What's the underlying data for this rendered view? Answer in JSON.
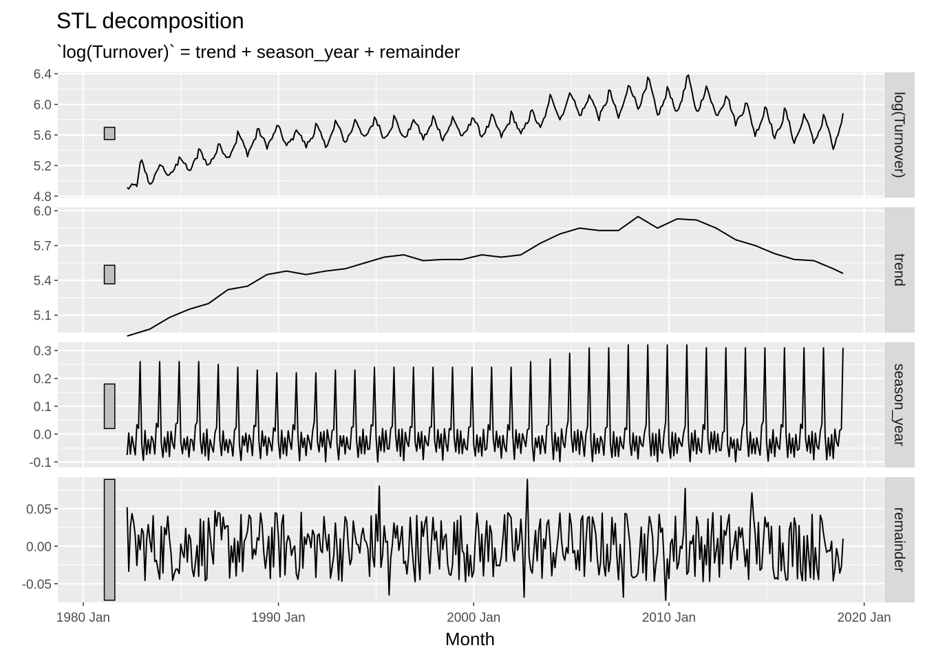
{
  "chart_data": {
    "type": "line",
    "title": "STL decomposition",
    "subtitle": "`log(Turnover)` = trend + season_year + remainder",
    "xlabel": "Month",
    "x_range": [
      "1982-04",
      "2018-12"
    ],
    "x_ticks": [
      "1980 Jan",
      "1990 Jan",
      "2000 Jan",
      "2010 Jan",
      "2020 Jan"
    ],
    "grid": true,
    "panels": [
      {
        "name": "log(Turnover)",
        "ylim": [
          4.78,
          6.42
        ],
        "y_ticks": [
          "6.4",
          "6.0",
          "5.6",
          "5.2",
          "4.8"
        ],
        "scale_bar": [
          5.54,
          5.7
        ],
        "points": [
          [
            "1982-04",
            4.9
          ],
          [
            "1982-10",
            4.95
          ],
          [
            "1983-01",
            5.25
          ],
          [
            "1983-06",
            4.95
          ],
          [
            "1984-01",
            5.2
          ],
          [
            "1984-06",
            5.05
          ],
          [
            "1985-01",
            5.3
          ],
          [
            "1985-06",
            5.12
          ],
          [
            "1986-01",
            5.38
          ],
          [
            "1986-06",
            5.2
          ],
          [
            "1987-01",
            5.45
          ],
          [
            "1987-06",
            5.3
          ],
          [
            "1988-01",
            5.6
          ],
          [
            "1988-06",
            5.35
          ],
          [
            "1989-01",
            5.65
          ],
          [
            "1989-06",
            5.45
          ],
          [
            "1990-01",
            5.7
          ],
          [
            "1990-06",
            5.45
          ],
          [
            "1991-01",
            5.65
          ],
          [
            "1991-06",
            5.45
          ],
          [
            "1992-01",
            5.7
          ],
          [
            "1992-06",
            5.45
          ],
          [
            "1993-01",
            5.75
          ],
          [
            "1993-06",
            5.5
          ],
          [
            "1994-01",
            5.78
          ],
          [
            "1994-06",
            5.55
          ],
          [
            "1995-01",
            5.8
          ],
          [
            "1995-06",
            5.55
          ],
          [
            "1996-01",
            5.8
          ],
          [
            "1996-06",
            5.55
          ],
          [
            "1997-01",
            5.78
          ],
          [
            "1997-06",
            5.55
          ],
          [
            "1998-01",
            5.8
          ],
          [
            "1998-06",
            5.55
          ],
          [
            "1999-01",
            5.8
          ],
          [
            "1999-06",
            5.56
          ],
          [
            "2000-01",
            5.82
          ],
          [
            "2000-06",
            5.58
          ],
          [
            "2001-01",
            5.82
          ],
          [
            "2001-06",
            5.58
          ],
          [
            "2002-01",
            5.85
          ],
          [
            "2002-06",
            5.6
          ],
          [
            "2003-01",
            5.9
          ],
          [
            "2003-06",
            5.68
          ],
          [
            "2004-01",
            6.1
          ],
          [
            "2004-06",
            5.8
          ],
          [
            "2005-01",
            6.15
          ],
          [
            "2005-06",
            5.85
          ],
          [
            "2006-01",
            6.1
          ],
          [
            "2006-06",
            5.82
          ],
          [
            "2007-01",
            6.15
          ],
          [
            "2007-06",
            5.82
          ],
          [
            "2008-01",
            6.25
          ],
          [
            "2008-06",
            5.95
          ],
          [
            "2009-01",
            6.3
          ],
          [
            "2009-06",
            5.85
          ],
          [
            "2010-01",
            6.18
          ],
          [
            "2010-06",
            5.88
          ],
          [
            "2011-01",
            6.35
          ],
          [
            "2011-06",
            5.9
          ],
          [
            "2012-01",
            6.2
          ],
          [
            "2012-06",
            5.85
          ],
          [
            "2013-01",
            6.1
          ],
          [
            "2013-06",
            5.75
          ],
          [
            "2014-01",
            6.0
          ],
          [
            "2014-06",
            5.6
          ],
          [
            "2015-01",
            5.95
          ],
          [
            "2015-06",
            5.55
          ],
          [
            "2016-01",
            5.9
          ],
          [
            "2016-06",
            5.5
          ],
          [
            "2017-01",
            5.85
          ],
          [
            "2017-06",
            5.5
          ],
          [
            "2018-01",
            5.82
          ],
          [
            "2018-06",
            5.42
          ],
          [
            "2018-12",
            5.78
          ]
        ]
      },
      {
        "name": "trend",
        "ylim": [
          4.95,
          6.03
        ],
        "y_ticks": [
          "6.0",
          "5.7",
          "5.4",
          "5.1"
        ],
        "scale_bar": [
          5.37,
          5.53
        ],
        "points": [
          [
            "1982-04",
            4.92
          ],
          [
            "1983-06",
            4.98
          ],
          [
            "1984-06",
            5.08
          ],
          [
            "1985-06",
            5.15
          ],
          [
            "1986-06",
            5.2
          ],
          [
            "1987-06",
            5.32
          ],
          [
            "1988-06",
            5.35
          ],
          [
            "1989-06",
            5.45
          ],
          [
            "1990-06",
            5.48
          ],
          [
            "1991-06",
            5.45
          ],
          [
            "1992-06",
            5.48
          ],
          [
            "1993-06",
            5.5
          ],
          [
            "1994-06",
            5.55
          ],
          [
            "1995-06",
            5.6
          ],
          [
            "1996-06",
            5.62
          ],
          [
            "1997-06",
            5.57
          ],
          [
            "1998-06",
            5.58
          ],
          [
            "1999-06",
            5.58
          ],
          [
            "2000-06",
            5.62
          ],
          [
            "2001-06",
            5.6
          ],
          [
            "2002-06",
            5.62
          ],
          [
            "2003-06",
            5.72
          ],
          [
            "2004-06",
            5.8
          ],
          [
            "2005-06",
            5.85
          ],
          [
            "2006-06",
            5.83
          ],
          [
            "2007-06",
            5.83
          ],
          [
            "2008-06",
            5.95
          ],
          [
            "2009-06",
            5.85
          ],
          [
            "2010-06",
            5.93
          ],
          [
            "2011-06",
            5.92
          ],
          [
            "2012-06",
            5.85
          ],
          [
            "2013-06",
            5.75
          ],
          [
            "2014-06",
            5.7
          ],
          [
            "2015-06",
            5.63
          ],
          [
            "2016-06",
            5.58
          ],
          [
            "2017-06",
            5.57
          ],
          [
            "2018-06",
            5.5
          ],
          [
            "2018-12",
            5.46
          ]
        ]
      },
      {
        "name": "season_year",
        "ylim": [
          -0.12,
          0.33
        ],
        "y_ticks": [
          "0.3",
          "0.2",
          "0.1",
          "0.0",
          "-0.1"
        ],
        "scale_bar": [
          0.02,
          0.18
        ],
        "december_peaks": [
          [
            "1982-12",
            0.26
          ],
          [
            "1983-12",
            0.26
          ],
          [
            "1984-12",
            0.26
          ],
          [
            "1985-12",
            0.26
          ],
          [
            "1986-12",
            0.25
          ],
          [
            "1987-12",
            0.24
          ],
          [
            "1988-12",
            0.23
          ],
          [
            "1989-12",
            0.22
          ],
          [
            "1990-12",
            0.22
          ],
          [
            "1991-12",
            0.22
          ],
          [
            "1992-12",
            0.23
          ],
          [
            "1993-12",
            0.23
          ],
          [
            "1994-12",
            0.24
          ],
          [
            "1995-12",
            0.24
          ],
          [
            "1996-12",
            0.24
          ],
          [
            "1997-12",
            0.24
          ],
          [
            "1998-12",
            0.24
          ],
          [
            "1999-12",
            0.24
          ],
          [
            "2000-12",
            0.24
          ],
          [
            "2001-12",
            0.24
          ],
          [
            "2002-12",
            0.26
          ],
          [
            "2003-12",
            0.27
          ],
          [
            "2004-12",
            0.29
          ],
          [
            "2005-12",
            0.31
          ],
          [
            "2006-12",
            0.31
          ],
          [
            "2007-12",
            0.32
          ],
          [
            "2008-12",
            0.32
          ],
          [
            "2009-12",
            0.32
          ],
          [
            "2010-12",
            0.32
          ],
          [
            "2011-12",
            0.31
          ],
          [
            "2012-12",
            0.31
          ],
          [
            "2013-12",
            0.31
          ],
          [
            "2014-12",
            0.31
          ],
          [
            "2015-12",
            0.31
          ],
          [
            "2016-12",
            0.31
          ],
          [
            "2017-12",
            0.31
          ],
          [
            "2018-12",
            0.31
          ]
        ],
        "other_months_range": [
          -0.11,
          0.05
        ]
      },
      {
        "name": "remainder",
        "ylim": [
          -0.075,
          0.092
        ],
        "y_ticks": [
          "0.05",
          "0.00",
          "-0.05"
        ],
        "scale_bar": [
          -0.072,
          0.089
        ],
        "notable_points": [
          [
            "1982-04",
            0.052
          ],
          [
            "1995-03",
            0.08
          ],
          [
            "1995-09",
            -0.065
          ],
          [
            "2002-08",
            -0.068
          ],
          [
            "2002-10",
            0.089
          ],
          [
            "2007-09",
            -0.068
          ],
          [
            "2009-11",
            -0.072
          ],
          [
            "2010-11",
            0.077
          ],
          [
            "2014-04",
            0.071
          ],
          [
            "2018-12",
            0.01
          ]
        ],
        "typical_range": [
          -0.05,
          0.05
        ]
      }
    ]
  }
}
